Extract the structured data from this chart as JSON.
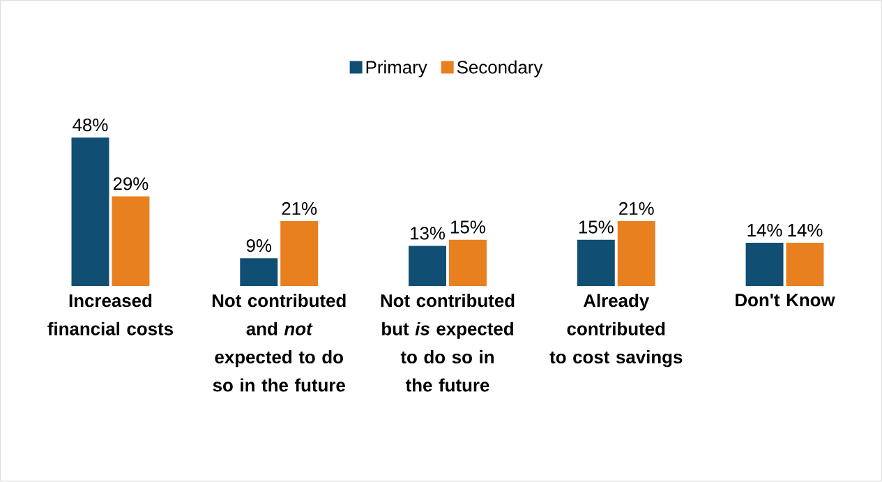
{
  "chart_data": {
    "type": "bar",
    "categories": [
      "Increased financial costs",
      "Not contributed and *not* expected to do so in the future",
      "Not contributed but *is* expected to do so in the future",
      "Already contributed to cost savings",
      "Don't Know"
    ],
    "series": [
      {
        "name": "Primary",
        "color": "#104e73",
        "values": [
          48,
          9,
          13,
          15,
          14
        ],
        "value_labels": [
          "48%",
          "9%",
          "13%",
          "15%",
          "14%"
        ]
      },
      {
        "name": "Secondary",
        "color": "#e8801f",
        "values": [
          29,
          21,
          15,
          21,
          14
        ],
        "value_labels": [
          "29%",
          "21%",
          "15%",
          "21%",
          "14%"
        ]
      }
    ],
    "legend": "top"
  }
}
